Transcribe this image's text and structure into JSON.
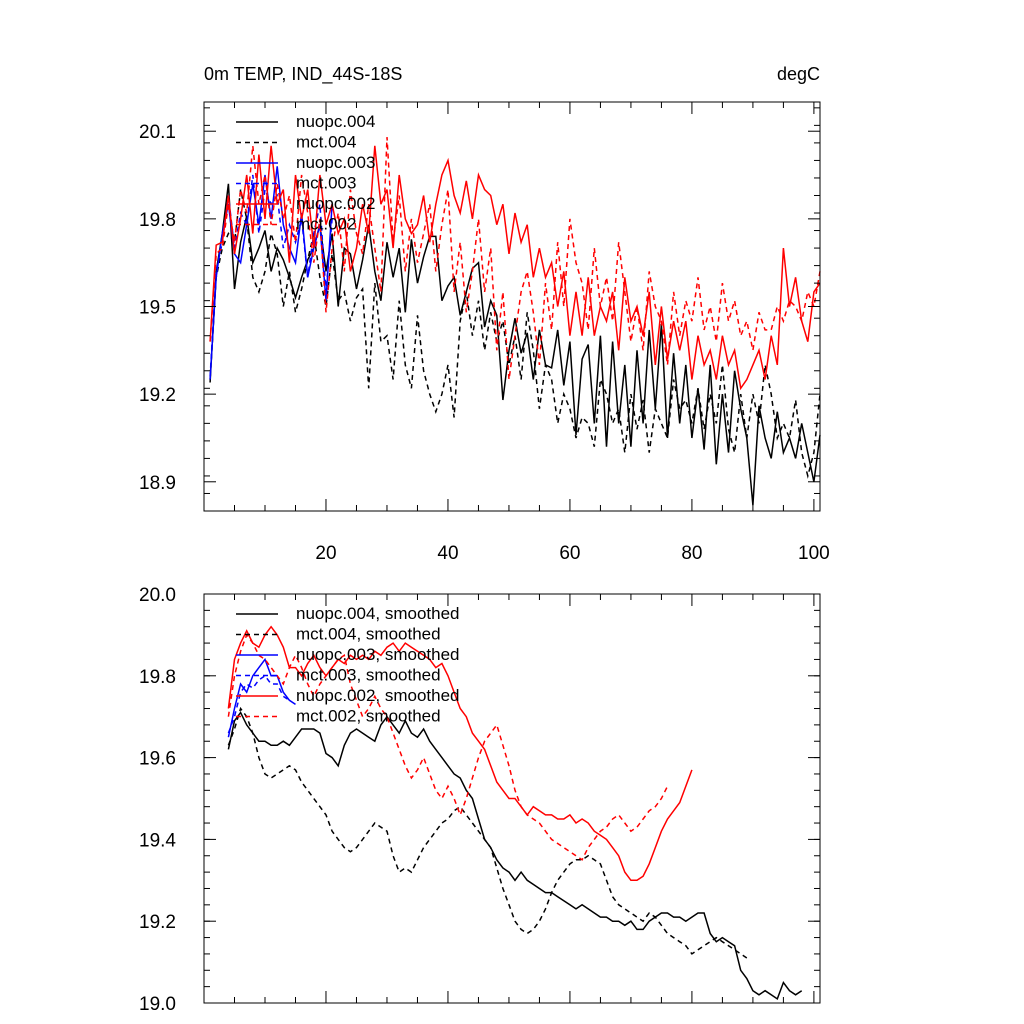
{
  "chart_data": [
    {
      "type": "line",
      "title": "0m TEMP, IND_44S-18S",
      "units": "degC",
      "xlabel": "",
      "ylabel": "",
      "xlim": [
        0,
        101
      ],
      "ylim": [
        18.8,
        20.2
      ],
      "xticks": [
        20,
        40,
        60,
        80,
        100
      ],
      "yticks": [
        18.9,
        19.2,
        19.5,
        19.8,
        20.1
      ],
      "ytick_labels": [
        "18.9",
        "19.2",
        "19.5",
        "19.8",
        "20.1"
      ],
      "legend_position": "top-left",
      "series": [
        {
          "name": "nuopc.004",
          "color": "#000000",
          "dash": false,
          "x_start": 1,
          "values": [
            19.24,
            19.62,
            19.75,
            19.92,
            19.56,
            19.72,
            19.81,
            19.65,
            19.7,
            19.76,
            19.62,
            19.7,
            19.66,
            19.6,
            19.53,
            19.6,
            19.66,
            19.7,
            19.78,
            19.62,
            19.75,
            19.5,
            19.7,
            19.68,
            19.56,
            19.66,
            19.78,
            19.62,
            19.52,
            19.72,
            19.6,
            19.7,
            19.48,
            19.73,
            19.58,
            19.67,
            19.74,
            19.74,
            19.52,
            19.57,
            19.6,
            19.47,
            19.55,
            19.63,
            19.65,
            19.43,
            19.52,
            19.47,
            19.18,
            19.35,
            19.46,
            19.34,
            19.41,
            19.25,
            19.42,
            19.3,
            19.29,
            19.42,
            19.23,
            19.38,
            19.06,
            19.32,
            19.37,
            19.1,
            19.4,
            19.02,
            19.38,
            19.1,
            19.3,
            19.02,
            19.35,
            19.1,
            19.42,
            19.15,
            19.44,
            19.05,
            19.34,
            19.1,
            19.3,
            19.05,
            19.22,
            19.01,
            19.3,
            18.96,
            19.2,
            19.0,
            19.28,
            19.15,
            19.05,
            18.82,
            19.16,
            19.05,
            18.98,
            19.14,
            19.0,
            19.05,
            18.98,
            19.1,
            19.0,
            18.9,
            19.06
          ]
        },
        {
          "name": "mct.004",
          "color": "#000000",
          "dash": true,
          "x_start": 1,
          "values": [
            19.25,
            19.6,
            19.7,
            19.75,
            19.72,
            19.9,
            19.8,
            19.6,
            19.55,
            19.62,
            19.75,
            19.68,
            19.5,
            19.62,
            19.48,
            19.56,
            19.66,
            19.75,
            19.6,
            19.5,
            19.68,
            19.52,
            19.55,
            19.45,
            19.53,
            19.56,
            19.22,
            19.58,
            19.38,
            19.4,
            19.25,
            19.52,
            19.3,
            19.22,
            19.47,
            19.28,
            19.2,
            19.14,
            19.2,
            19.3,
            19.12,
            19.45,
            19.55,
            19.4,
            19.52,
            19.35,
            19.48,
            19.38,
            19.45,
            19.3,
            19.4,
            19.25,
            19.48,
            19.35,
            19.15,
            19.3,
            19.25,
            19.1,
            19.2,
            19.15,
            19.05,
            19.12,
            19.1,
            19.02,
            19.25,
            19.2,
            19.1,
            19.15,
            19.0,
            19.2,
            19.08,
            19.18,
            19.0,
            19.15,
            19.1,
            19.05,
            19.25,
            19.15,
            19.18,
            19.1,
            19.22,
            19.08,
            19.2,
            19.1,
            19.3,
            19.08,
            19.0,
            19.2,
            19.05,
            19.2,
            19.1,
            19.3,
            19.2,
            19.05,
            19.1,
            19.05,
            19.18,
            19.0,
            18.92,
            19.0,
            19.2
          ]
        },
        {
          "name": "nuopc.003",
          "color": "#0000ff",
          "dash": false,
          "x_start": 1,
          "values": [
            19.25,
            19.6,
            19.75,
            19.85,
            19.68,
            19.65,
            19.78,
            19.92,
            19.78,
            19.95,
            19.8,
            19.98,
            19.78,
            19.7,
            19.65,
            19.82,
            19.6,
            19.7,
            19.78,
            19.52,
            19.85
          ]
        },
        {
          "name": "mct.003",
          "color": "#0000ff",
          "dash": true,
          "x_start": 1,
          "values": [
            19.26,
            19.62,
            19.72,
            19.88,
            19.7,
            19.82,
            19.78,
            19.95,
            19.75,
            19.9,
            19.85,
            19.88,
            19.7,
            19.78,
            19.72,
            19.8,
            19.6,
            19.75,
            19.85,
            19.55,
            19.8
          ]
        },
        {
          "name": "nuopc.002",
          "color": "#ff0000",
          "dash": false,
          "x_start": 1,
          "values": [
            19.38,
            19.71,
            19.72,
            19.88,
            19.68,
            19.8,
            19.95,
            19.75,
            20.02,
            19.8,
            20.05,
            19.85,
            19.9,
            19.65,
            19.95,
            19.8,
            19.9,
            19.7,
            19.95,
            19.78,
            19.85,
            19.75,
            19.8,
            19.62,
            19.7,
            19.85,
            19.75,
            20.05,
            19.85,
            19.9,
            19.7,
            19.95,
            19.8,
            19.75,
            19.78,
            19.88,
            19.72,
            19.85,
            19.95,
            20.0,
            19.88,
            19.82,
            19.93,
            19.8,
            19.95,
            19.9,
            19.88,
            19.78,
            19.85,
            19.68,
            19.82,
            19.72,
            19.78,
            19.6,
            19.7,
            19.6,
            19.65,
            19.5,
            19.62,
            19.4,
            19.55,
            19.4,
            19.6,
            19.4,
            19.5,
            19.45,
            19.55,
            19.35,
            19.6,
            19.45,
            19.5,
            19.4,
            19.55,
            19.3,
            19.5,
            19.32,
            19.45,
            19.35,
            19.45,
            19.25,
            19.4,
            19.3,
            19.35,
            19.25,
            19.4,
            19.3,
            19.35,
            19.22,
            19.25,
            19.3,
            19.35,
            19.25,
            19.4,
            19.3,
            19.7,
            19.5,
            19.6,
            19.45,
            19.38,
            19.55,
            19.58
          ]
        },
        {
          "name": "mct.002",
          "color": "#ff0000",
          "dash": true,
          "x_start": 1,
          "values": [
            19.38,
            19.68,
            19.7,
            19.85,
            19.72,
            19.9,
            19.82,
            20.05,
            19.85,
            19.95,
            19.78,
            19.92,
            19.8,
            19.88,
            19.72,
            19.95,
            19.82,
            19.65,
            19.8,
            19.48,
            19.7,
            19.82,
            19.62,
            19.9,
            19.75,
            19.68,
            19.85,
            19.7,
            19.55,
            20.08,
            19.72,
            19.88,
            19.62,
            19.8,
            19.65,
            19.75,
            19.85,
            19.62,
            19.78,
            19.9,
            19.55,
            19.72,
            19.48,
            19.62,
            19.8,
            19.55,
            19.7,
            19.35,
            19.55,
            19.25,
            19.4,
            19.55,
            19.62,
            19.48,
            19.3,
            19.58,
            19.42,
            19.72,
            19.5,
            19.8,
            19.65,
            19.58,
            19.42,
            19.7,
            19.5,
            19.6,
            19.45,
            19.72,
            19.55,
            19.38,
            19.5,
            19.35,
            19.62,
            19.5,
            19.45,
            19.3,
            19.55,
            19.4,
            19.52,
            19.45,
            19.6,
            19.42,
            19.5,
            19.38,
            19.58,
            19.45,
            19.52,
            19.4,
            19.45,
            19.35,
            19.48,
            19.42,
            19.42,
            19.5,
            19.45,
            19.52,
            19.5,
            19.45,
            19.55,
            19.5,
            19.62
          ]
        }
      ]
    },
    {
      "type": "line",
      "title": "",
      "xlabel": "",
      "ylabel": "",
      "xlim": [
        0,
        101
      ],
      "ylim": [
        19.0,
        20.0
      ],
      "yticks": [
        19.0,
        19.2,
        19.4,
        19.6,
        19.8,
        20.0
      ],
      "ytick_labels": [
        "19.0",
        "19.2",
        "19.4",
        "19.6",
        "19.8",
        "20.0"
      ],
      "legend_position": "top-left",
      "series": [
        {
          "name": "nuopc.004, smoothed",
          "color": "#000000",
          "dash": false,
          "x_start": 4,
          "values": [
            19.62,
            19.69,
            19.71,
            19.68,
            19.66,
            19.64,
            19.64,
            19.63,
            19.63,
            19.64,
            19.63,
            19.65,
            19.67,
            19.67,
            19.67,
            19.66,
            19.61,
            19.6,
            19.58,
            19.63,
            19.66,
            19.67,
            19.66,
            19.65,
            19.64,
            19.68,
            19.7,
            19.68,
            19.66,
            19.69,
            19.66,
            19.65,
            19.67,
            19.64,
            19.62,
            19.6,
            19.58,
            19.56,
            19.55,
            19.52,
            19.5,
            19.45,
            19.4,
            19.38,
            19.35,
            19.33,
            19.32,
            19.3,
            19.32,
            19.3,
            19.29,
            19.28,
            19.27,
            19.27,
            19.26,
            19.25,
            19.24,
            19.23,
            19.24,
            19.23,
            19.22,
            19.21,
            19.21,
            19.2,
            19.2,
            19.19,
            19.2,
            19.18,
            19.18,
            19.2,
            19.21,
            19.22,
            19.22,
            19.21,
            19.21,
            19.2,
            19.21,
            19.22,
            19.22,
            19.17,
            19.15,
            19.16,
            19.15,
            19.14,
            19.08,
            19.06,
            19.03,
            19.02,
            19.03,
            19.02,
            19.01,
            19.05,
            19.03,
            19.02,
            19.03
          ]
        },
        {
          "name": "mct.004, smoothed",
          "color": "#000000",
          "dash": true,
          "x_start": 4,
          "values": [
            19.63,
            19.67,
            19.72,
            19.7,
            19.66,
            19.6,
            19.56,
            19.55,
            19.56,
            19.57,
            19.58,
            19.57,
            19.54,
            19.52,
            19.5,
            19.48,
            19.46,
            19.42,
            19.4,
            19.38,
            19.37,
            19.38,
            19.4,
            19.42,
            19.44,
            19.43,
            19.42,
            19.36,
            19.32,
            19.33,
            19.32,
            19.35,
            19.38,
            19.4,
            19.42,
            19.44,
            19.45,
            19.47,
            19.48,
            19.46,
            19.44,
            19.42,
            19.4,
            19.38,
            19.33,
            19.28,
            19.24,
            19.2,
            19.18,
            19.17,
            19.18,
            19.2,
            19.23,
            19.27,
            19.3,
            19.32,
            19.34,
            19.35,
            19.35,
            19.36,
            19.35,
            19.34,
            19.3,
            19.26,
            19.24,
            19.23,
            19.22,
            19.21,
            19.2,
            19.22,
            19.21,
            19.19,
            19.17,
            19.16,
            19.15,
            19.14,
            19.12,
            19.13,
            19.14,
            19.15,
            19.16,
            19.15,
            19.14,
            19.13,
            19.12,
            19.11
          ]
        },
        {
          "name": "nuopc.003, smoothed",
          "color": "#0000ff",
          "dash": false,
          "x_start": 4,
          "values": [
            19.65,
            19.72,
            19.78,
            19.76,
            19.8,
            19.82,
            19.84,
            19.8,
            19.8,
            19.76,
            19.74,
            19.73
          ]
        },
        {
          "name": "mct.003, smoothed",
          "color": "#0000ff",
          "dash": true,
          "x_start": 4,
          "values": [
            19.66,
            19.7,
            19.76,
            19.78,
            19.77,
            19.79,
            19.8,
            19.78,
            19.78,
            19.75,
            19.74
          ]
        },
        {
          "name": "nuopc.002, smoothed",
          "color": "#ff0000",
          "dash": false,
          "x_start": 4,
          "values": [
            19.72,
            19.84,
            19.88,
            19.91,
            19.88,
            19.87,
            19.9,
            19.92,
            19.9,
            19.87,
            19.82,
            19.82,
            19.8,
            19.83,
            19.85,
            19.82,
            19.8,
            19.82,
            19.84,
            19.83,
            19.85,
            19.84,
            19.85,
            19.84,
            19.86,
            19.85,
            19.87,
            19.88,
            19.86,
            19.88,
            19.87,
            19.86,
            19.85,
            19.84,
            19.82,
            19.83,
            19.8,
            19.76,
            19.72,
            19.7,
            19.66,
            19.64,
            19.62,
            19.58,
            19.54,
            19.52,
            19.5,
            19.5,
            19.48,
            19.46,
            19.48,
            19.47,
            19.46,
            19.46,
            19.45,
            19.45,
            19.46,
            19.44,
            19.45,
            19.44,
            19.42,
            19.41,
            19.4,
            19.38,
            19.36,
            19.32,
            19.3,
            19.3,
            19.31,
            19.34,
            19.38,
            19.42,
            19.45,
            19.47,
            19.49,
            19.53,
            19.57
          ]
        },
        {
          "name": "mct.002, smoothed",
          "color": "#ff0000",
          "dash": true,
          "x_start": 4,
          "values": [
            19.7,
            19.8,
            19.86,
            19.9,
            19.88,
            19.85,
            19.84,
            19.82,
            19.8,
            19.78,
            19.82,
            19.85,
            19.82,
            19.78,
            19.75,
            19.78,
            19.8,
            19.82,
            19.84,
            19.85,
            19.78,
            19.74,
            19.7,
            19.72,
            19.75,
            19.72,
            19.7,
            19.66,
            19.62,
            19.58,
            19.55,
            19.57,
            19.6,
            19.56,
            19.52,
            19.5,
            19.53,
            19.5,
            19.46,
            19.5,
            19.55,
            19.6,
            19.64,
            19.66,
            19.68,
            19.63,
            19.58,
            19.52,
            19.48,
            19.46,
            19.45,
            19.44,
            19.42,
            19.4,
            19.39,
            19.38,
            19.37,
            19.36,
            19.35,
            19.38,
            19.4,
            19.42,
            19.43,
            19.45,
            19.46,
            19.44,
            19.42,
            19.43,
            19.45,
            19.47,
            19.48,
            19.5,
            19.53
          ]
        }
      ]
    }
  ]
}
